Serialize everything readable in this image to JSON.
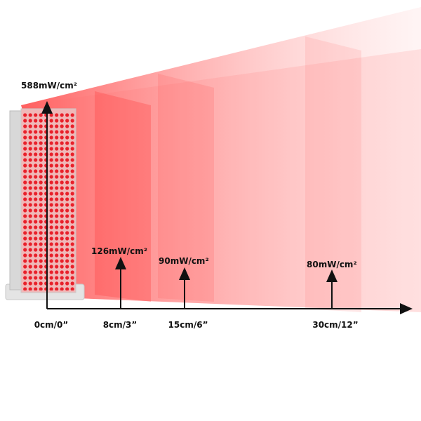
{
  "y_axis_label": "588mW/cm²",
  "points": [
    {
      "distance": "0cm/0”"
    },
    {
      "distance": "8cm/3”",
      "power": "126mW/cm²"
    },
    {
      "distance": "15cm/6”",
      "power": "90mW/cm²"
    },
    {
      "distance": "30cm/12”",
      "power": "80mW/cm²"
    }
  ]
}
